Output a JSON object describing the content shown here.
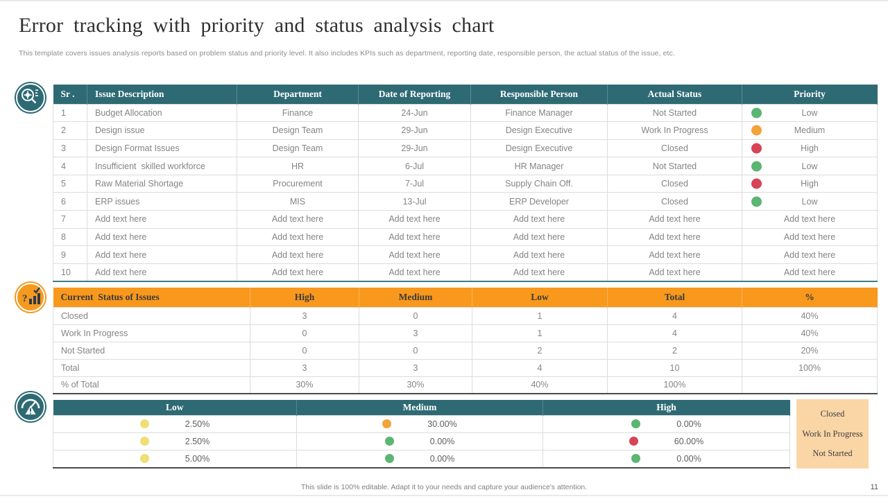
{
  "slide": {
    "title": "Error tracking with priority and status analysis chart",
    "subtitle": "This template covers issues analysis reports based on problem status and priority level. It also includes KPIs such as department, reporting date, responsible person, the actual status of the issue, etc.",
    "footer": "This slide is 100% editable. Adapt it to your needs and capture your audience's attention.",
    "page_number": "11"
  },
  "colors": {
    "teal_header": "#2E6A74",
    "orange_header": "#F8981D",
    "legend_bg": "#FAD6A6",
    "dot_green": "#5CB572",
    "dot_orange": "#F2A33C",
    "dot_red": "#D64456",
    "dot_yellow": "#F0DE76"
  },
  "issues_table": {
    "headers": [
      "Sr .",
      "Issue Description",
      "Department",
      "Date of Reporting",
      "Responsible Person",
      "Actual Status",
      "Priority"
    ],
    "rows": [
      {
        "sr": "1",
        "description": "Budget Allocation",
        "department": "Finance",
        "date": "24-Jun",
        "person": "Finance Manager",
        "status": "Not Started",
        "priority": "Low",
        "priority_dot": "dot_green"
      },
      {
        "sr": "2",
        "description": "Design issue",
        "department": "Design Team",
        "date": "29-Jun",
        "person": "Design Executive",
        "status": "Work In Progress",
        "priority": "Medium",
        "priority_dot": "dot_orange"
      },
      {
        "sr": "3",
        "description": "Design Format Issues",
        "department": "Design Team",
        "date": "29-Jun",
        "person": "Design Executive",
        "status": "Closed",
        "priority": "High",
        "priority_dot": "dot_red"
      },
      {
        "sr": "4",
        "description": "Insufficient  skilled workforce",
        "department": "HR",
        "date": "6-Jul",
        "person": "HR Manager",
        "status": "Not Started",
        "priority": "Low",
        "priority_dot": "dot_green"
      },
      {
        "sr": "5",
        "description": "Raw Material Shortage",
        "department": "Procurement",
        "date": "7-Jul",
        "person": "Supply Chain Off.",
        "status": "Closed",
        "priority": "High",
        "priority_dot": "dot_red"
      },
      {
        "sr": "6",
        "description": "ERP issues",
        "department": "MIS",
        "date": "13-Jul",
        "person": "ERP Developer",
        "status": "Closed",
        "priority": "Low",
        "priority_dot": "dot_green"
      },
      {
        "sr": "7",
        "description": "Add text here",
        "department": "Add text here",
        "date": "Add text here",
        "person": "Add text here",
        "status": "Add text here",
        "priority": "Add text here",
        "priority_dot": null
      },
      {
        "sr": "8",
        "description": "Add text here",
        "department": "Add text here",
        "date": "Add text here",
        "person": "Add text here",
        "status": "Add text here",
        "priority": "Add text here",
        "priority_dot": null
      },
      {
        "sr": "9",
        "description": "Add text here",
        "department": "Add text here",
        "date": "Add text here",
        "person": "Add text here",
        "status": "Add text here",
        "priority": "Add text here",
        "priority_dot": null
      },
      {
        "sr": "10",
        "description": "Add text here",
        "department": "Add text here",
        "date": "Add text here",
        "person": "Add text here",
        "status": "Add text here",
        "priority": "Add text here",
        "priority_dot": null
      }
    ]
  },
  "status_table": {
    "headers": [
      "Current  Status of Issues",
      "High",
      "Medium",
      "Low",
      "Total",
      "%"
    ],
    "rows": [
      [
        "Closed",
        "3",
        "0",
        "1",
        "4",
        "40%"
      ],
      [
        "Work In Progress",
        "0",
        "3",
        "1",
        "4",
        "40%"
      ],
      [
        "Not Started",
        "0",
        "0",
        "2",
        "2",
        "20%"
      ],
      [
        "Total",
        "3",
        "3",
        "4",
        "10",
        "100%"
      ],
      [
        "% of Total",
        "30%",
        "30%",
        "40%",
        "100%",
        ""
      ]
    ]
  },
  "priority_summary_table": {
    "headers": [
      "Low",
      "Medium",
      "High"
    ],
    "rows": [
      [
        {
          "dot": "dot_yellow",
          "value": "2.50%"
        },
        {
          "dot": "dot_orange",
          "value": "30.00%"
        },
        {
          "dot": "dot_green",
          "value": "0.00%"
        }
      ],
      [
        {
          "dot": "dot_yellow",
          "value": "2.50%"
        },
        {
          "dot": "dot_green",
          "value": "0.00%"
        },
        {
          "dot": "dot_red",
          "value": "60.00%"
        }
      ],
      [
        {
          "dot": "dot_yellow",
          "value": "5.00%"
        },
        {
          "dot": "dot_green",
          "value": "0.00%"
        },
        {
          "dot": "dot_green",
          "value": "0.00%"
        }
      ]
    ]
  },
  "legend_box": {
    "items": [
      "Closed",
      "Work In Progress",
      "Not Started"
    ]
  }
}
